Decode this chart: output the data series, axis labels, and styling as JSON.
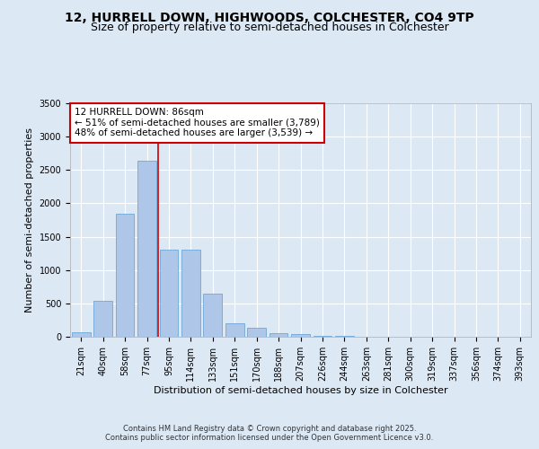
{
  "title_line1": "12, HURRELL DOWN, HIGHWOODS, COLCHESTER, CO4 9TP",
  "title_line2": "Size of property relative to semi-detached houses in Colchester",
  "xlabel": "Distribution of semi-detached houses by size in Colchester",
  "ylabel": "Number of semi-detached properties",
  "footer_line1": "Contains HM Land Registry data © Crown copyright and database right 2025.",
  "footer_line2": "Contains public sector information licensed under the Open Government Licence v3.0.",
  "annotation_title": "12 HURRELL DOWN: 86sqm",
  "annotation_line2": "← 51% of semi-detached houses are smaller (3,789)",
  "annotation_line3": "48% of semi-detached houses are larger (3,539) →",
  "bar_labels": [
    "21sqm",
    "40sqm",
    "58sqm",
    "77sqm",
    "95sqm",
    "114sqm",
    "133sqm",
    "151sqm",
    "170sqm",
    "188sqm",
    "207sqm",
    "226sqm",
    "244sqm",
    "263sqm",
    "281sqm",
    "300sqm",
    "319sqm",
    "337sqm",
    "356sqm",
    "374sqm",
    "393sqm"
  ],
  "bar_values": [
    70,
    540,
    1840,
    2640,
    1310,
    1310,
    640,
    200,
    130,
    60,
    45,
    20,
    15,
    5,
    2,
    1,
    0,
    0,
    0,
    0,
    0
  ],
  "bar_color": "#aec6e8",
  "bar_edge_color": "#5a9fd4",
  "vline_color": "#cc0000",
  "vline_x": 3.5,
  "annotation_box_color": "#cc0000",
  "annotation_bg_color": "#ffffff",
  "ylim": [
    0,
    3500
  ],
  "yticks": [
    0,
    500,
    1000,
    1500,
    2000,
    2500,
    3000,
    3500
  ],
  "bg_color": "#dde8f5",
  "plot_bg_color": "#dde8f5",
  "grid_color": "#ffffff",
  "title_fontsize": 10,
  "subtitle_fontsize": 9,
  "axis_label_fontsize": 8,
  "tick_fontsize": 7,
  "annotation_fontsize": 7.5,
  "footer_fontsize": 6
}
